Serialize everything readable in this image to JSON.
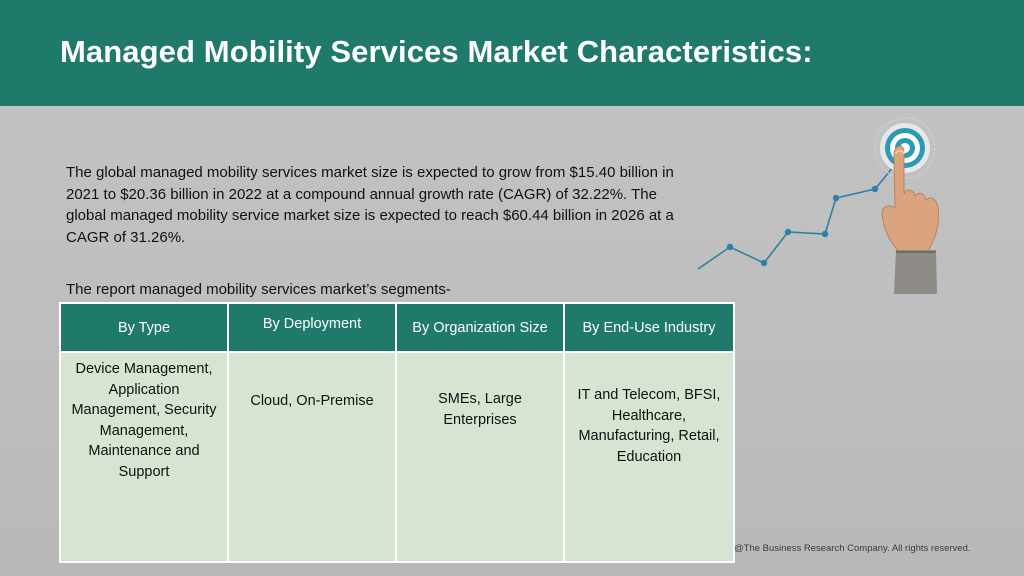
{
  "header": {
    "title": "Managed Mobility Services Market Characteristics:"
  },
  "intro": {
    "text": "The global managed mobility services market size is expected to grow from $15.40 billion in 2021 to $20.36 billion in 2022 at a compound annual growth rate (CAGR) of 32.22%. The global managed mobility service market size is expected to reach $60.44 billion in 2026 at a CAGR of 31.26%."
  },
  "segments": {
    "label": "The report managed mobility services market’s segments-",
    "headers": [
      "By Type",
      "By Deployment",
      "By Organization Size",
      "By End-Use Industry"
    ],
    "values": [
      "Device Management, Application Management, Security Management, Maintenance and Support",
      "Cloud, On-Premise",
      "SMEs, Large Enterprises",
      "IT and Telecom, BFSI, Healthcare, Manufacturing, Retail, Education"
    ]
  },
  "graphic": {
    "icon": "hand-touching-target-growth-icon",
    "colors": {
      "line": "#2f7fa8",
      "target": "#2a9ab5"
    }
  },
  "footer": {
    "copyright": "@The Business Research Company. All rights reserved."
  }
}
